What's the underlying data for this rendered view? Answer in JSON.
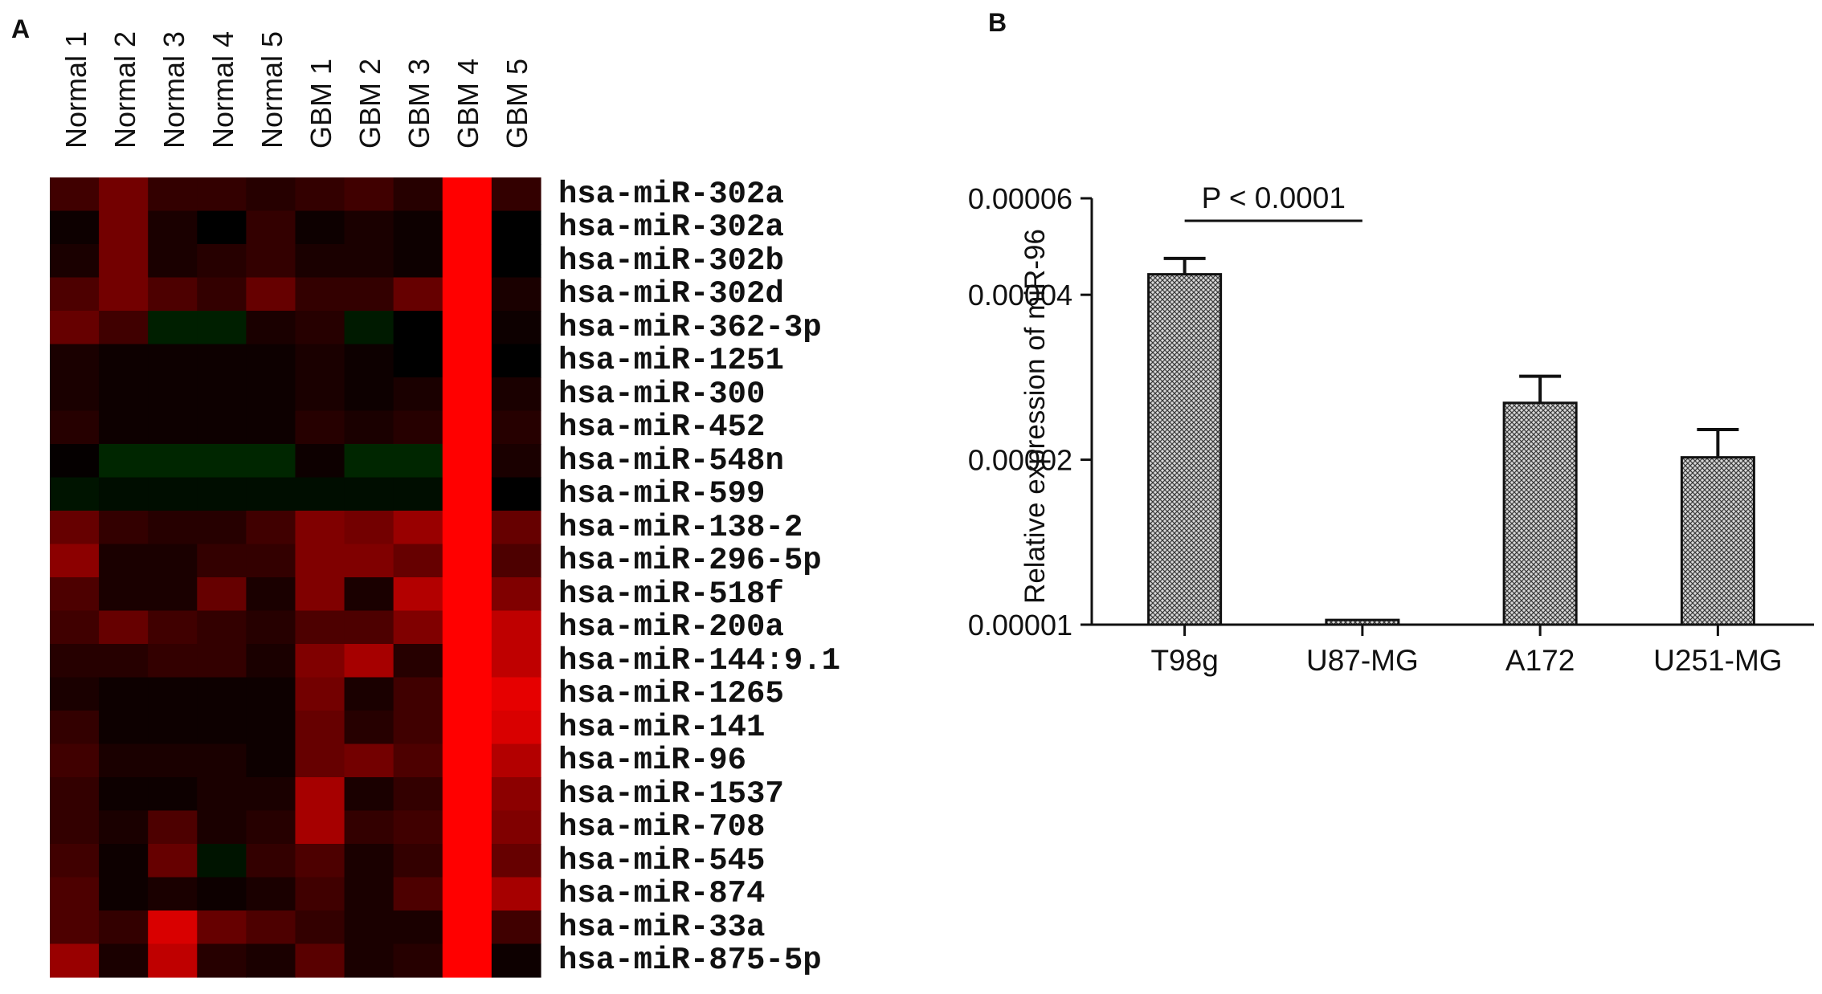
{
  "panels": {
    "a_label": "A",
    "b_label": "B"
  },
  "chart_data": [
    {
      "type": "heatmap",
      "columns": [
        "Normal 1",
        "Normal 2",
        "Normal 3",
        "Normal 4",
        "Normal 5",
        "GBM 1",
        "GBM 2",
        "GBM 3",
        "GBM 4",
        "GBM 5"
      ],
      "rows": [
        "hsa-miR-302a",
        "hsa-miR-302a",
        "hsa-miR-302b",
        "hsa-miR-302d",
        "hsa-miR-362-3p",
        "hsa-miR-1251",
        "hsa-miR-300",
        "hsa-miR-452",
        "hsa-miR-548n",
        "hsa-miR-599",
        "hsa-miR-138-2",
        "hsa-miR-296-5p",
        "hsa-miR-518f",
        "hsa-miR-200a",
        "hsa-miR-144:9.1",
        "hsa-miR-1265",
        "hsa-miR-141",
        "hsa-miR-96",
        "hsa-miR-1537",
        "hsa-miR-708",
        "hsa-miR-545",
        "hsa-miR-874",
        "hsa-miR-33a",
        "hsa-miR-875-5p"
      ],
      "colorscale": {
        "low": "#00ff00",
        "mid": "#000000",
        "high": "#ff0000"
      },
      "values": [
        [
          0.25,
          0.45,
          0.2,
          0.2,
          0.15,
          0.2,
          0.25,
          0.15,
          1.0,
          0.2
        ],
        [
          0.05,
          0.45,
          0.1,
          0.0,
          0.2,
          0.05,
          0.1,
          0.05,
          1.0,
          0.0
        ],
        [
          0.1,
          0.45,
          0.1,
          0.15,
          0.2,
          0.1,
          0.1,
          0.05,
          1.0,
          0.0
        ],
        [
          0.3,
          0.45,
          0.3,
          0.2,
          0.4,
          0.2,
          0.2,
          0.4,
          1.0,
          0.1
        ],
        [
          0.4,
          0.25,
          -0.12,
          -0.12,
          0.1,
          0.15,
          -0.1,
          0.0,
          1.0,
          0.05
        ],
        [
          0.1,
          0.05,
          0.05,
          0.05,
          0.05,
          0.1,
          0.05,
          0.0,
          1.0,
          0.0
        ],
        [
          0.1,
          0.05,
          0.05,
          0.05,
          0.05,
          0.1,
          0.05,
          0.1,
          1.0,
          0.1
        ],
        [
          0.15,
          0.05,
          0.05,
          0.05,
          0.05,
          0.15,
          0.1,
          0.15,
          1.0,
          0.15
        ],
        [
          0.02,
          -0.15,
          -0.15,
          -0.15,
          -0.15,
          0.05,
          -0.15,
          -0.15,
          1.0,
          0.1
        ],
        [
          -0.08,
          -0.05,
          -0.05,
          -0.05,
          -0.05,
          -0.05,
          -0.05,
          -0.05,
          1.0,
          0.0
        ],
        [
          0.4,
          0.2,
          0.15,
          0.15,
          0.25,
          0.5,
          0.45,
          0.6,
          1.0,
          0.4
        ],
        [
          0.55,
          0.1,
          0.1,
          0.2,
          0.2,
          0.5,
          0.5,
          0.4,
          1.0,
          0.3
        ],
        [
          0.3,
          0.1,
          0.1,
          0.4,
          0.1,
          0.5,
          0.1,
          0.7,
          1.0,
          0.5
        ],
        [
          0.25,
          0.4,
          0.25,
          0.2,
          0.15,
          0.3,
          0.3,
          0.5,
          1.0,
          0.75
        ],
        [
          0.15,
          0.15,
          0.2,
          0.2,
          0.1,
          0.5,
          0.65,
          0.15,
          1.0,
          0.75
        ],
        [
          0.1,
          0.05,
          0.05,
          0.05,
          0.05,
          0.45,
          0.1,
          0.25,
          1.0,
          0.9
        ],
        [
          0.2,
          0.05,
          0.05,
          0.05,
          0.05,
          0.4,
          0.15,
          0.25,
          1.0,
          0.85
        ],
        [
          0.25,
          0.1,
          0.1,
          0.1,
          0.05,
          0.4,
          0.45,
          0.3,
          1.0,
          0.7
        ],
        [
          0.2,
          0.05,
          0.05,
          0.1,
          0.1,
          0.65,
          0.1,
          0.2,
          1.0,
          0.55
        ],
        [
          0.2,
          0.1,
          0.3,
          0.1,
          0.15,
          0.65,
          0.2,
          0.25,
          1.0,
          0.5
        ],
        [
          0.25,
          0.05,
          0.4,
          -0.08,
          0.2,
          0.3,
          0.1,
          0.2,
          1.0,
          0.4
        ],
        [
          0.3,
          0.05,
          0.1,
          0.05,
          0.1,
          0.25,
          0.1,
          0.3,
          1.0,
          0.65
        ],
        [
          0.3,
          0.2,
          0.85,
          0.4,
          0.3,
          0.2,
          0.1,
          0.1,
          1.0,
          0.25
        ],
        [
          0.6,
          0.1,
          0.75,
          0.15,
          0.1,
          0.35,
          0.1,
          0.15,
          1.0,
          0.05
        ]
      ]
    },
    {
      "type": "bar",
      "categories": [
        "T98g",
        "U87-MG",
        "A172",
        "U251-MG"
      ],
      "values": [
        4.36e-05,
        1.02e-05,
        2.54e-05,
        2.02e-05
      ],
      "errors": [
        3e-06,
        0.0,
        3e-06,
        2.5e-06
      ],
      "ylabel": "Relative expression of miR-96",
      "yticks": [
        "0.00001",
        "0.00002",
        "0.00004",
        "0.00006"
      ],
      "ylim": [
        1e-05,
        6e-05
      ],
      "yscale": "log",
      "annotation": {
        "text": "P < 0.0001",
        "between": [
          "T98g",
          "U87-MG"
        ]
      }
    }
  ]
}
